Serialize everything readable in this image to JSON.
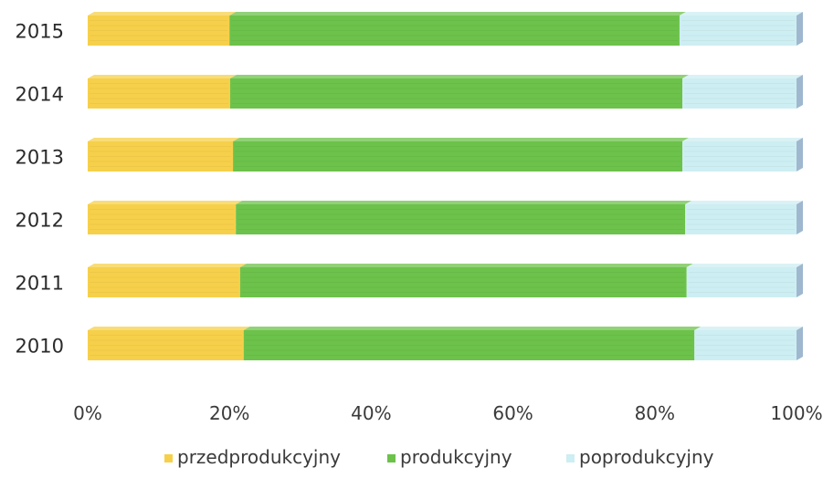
{
  "chart_data": {
    "type": "bar",
    "orientation": "horizontal",
    "stacked": "percent",
    "categories": [
      "2015",
      "2014",
      "2013",
      "2012",
      "2011",
      "2010"
    ],
    "series": [
      {
        "name": "przedprodukcyjny",
        "values": [
          20.0,
          20.1,
          20.5,
          20.9,
          21.5,
          22.0
        ],
        "color": "#f6d04a"
      },
      {
        "name": "produkcyjny",
        "values": [
          63.5,
          63.8,
          63.4,
          63.4,
          63.0,
          63.6
        ],
        "color": "#6cc24a"
      },
      {
        "name": "poprodukcyjny",
        "values": [
          16.5,
          16.1,
          16.1,
          15.7,
          15.5,
          14.4
        ],
        "color": "#cdeef2"
      }
    ],
    "x_ticks": [
      "0%",
      "20%",
      "40%",
      "60%",
      "80%",
      "100%"
    ],
    "xlim": [
      0,
      100
    ],
    "grid": false,
    "legend_position": "bottom",
    "three_d": true
  },
  "legend": {
    "items": [
      "przedprodukcyjny",
      "produkcyjny",
      "poprodukcyjny"
    ]
  }
}
